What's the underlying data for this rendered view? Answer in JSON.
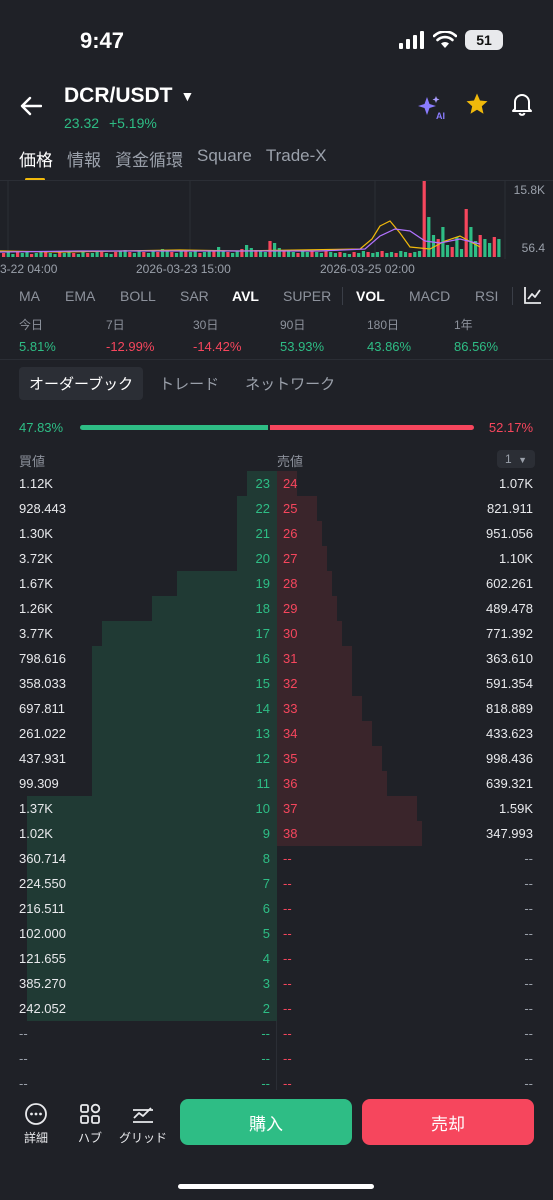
{
  "status": {
    "time": "9:47",
    "battery": "51"
  },
  "header": {
    "pair": "DCR/USDT",
    "price": "23.32",
    "change": "+5.19%",
    "ai_label": "AI"
  },
  "tabs": [
    "価格",
    "情報",
    "資金循環",
    "Square",
    "Trade-X"
  ],
  "chart": {
    "y_top": "15.8K",
    "y_bottom": "56.4",
    "x_labels": [
      "3-22 04:00",
      "2026-03-23 15:00",
      "2026-03-25 02:00"
    ]
  },
  "indicators": [
    "MA",
    "EMA",
    "BOLL",
    "SAR",
    "AVL",
    "SUPER",
    "VOL",
    "MACD",
    "RSI"
  ],
  "performance": [
    {
      "label": "今日",
      "value": "5.81%",
      "dir": "up"
    },
    {
      "label": "7日",
      "value": "-12.99%",
      "dir": "down"
    },
    {
      "label": "30日",
      "value": "-14.42%",
      "dir": "down"
    },
    {
      "label": "90日",
      "value": "53.93%",
      "dir": "up"
    },
    {
      "label": "180日",
      "value": "43.86%",
      "dir": "up"
    },
    {
      "label": "1年",
      "value": "86.56%",
      "dir": "up"
    }
  ],
  "segments": [
    "オーダーブック",
    "トレード",
    "ネットワーク"
  ],
  "ratio": {
    "buy": "47.83%",
    "sell": "52.17%",
    "buy_fraction": 0.4783
  },
  "orderbook": {
    "bid_header": "買値",
    "ask_header": "売値",
    "precision": "1",
    "rows": [
      {
        "bid": "1.12K",
        "bid_lvl": "23",
        "ask_lvl": "24",
        "ask": "1.07K"
      },
      {
        "bid": "928.443",
        "bid_lvl": "22",
        "ask_lvl": "25",
        "ask": "821.911"
      },
      {
        "bid": "1.30K",
        "bid_lvl": "21",
        "ask_lvl": "26",
        "ask": "951.056"
      },
      {
        "bid": "3.72K",
        "bid_lvl": "20",
        "ask_lvl": "27",
        "ask": "1.10K"
      },
      {
        "bid": "1.67K",
        "bid_lvl": "19",
        "ask_lvl": "28",
        "ask": "602.261"
      },
      {
        "bid": "1.26K",
        "bid_lvl": "18",
        "ask_lvl": "29",
        "ask": "489.478"
      },
      {
        "bid": "3.77K",
        "bid_lvl": "17",
        "ask_lvl": "30",
        "ask": "771.392"
      },
      {
        "bid": "798.616",
        "bid_lvl": "16",
        "ask_lvl": "31",
        "ask": "363.610"
      },
      {
        "bid": "358.033",
        "bid_lvl": "15",
        "ask_lvl": "32",
        "ask": "591.354"
      },
      {
        "bid": "697.811",
        "bid_lvl": "14",
        "ask_lvl": "33",
        "ask": "818.889"
      },
      {
        "bid": "261.022",
        "bid_lvl": "13",
        "ask_lvl": "34",
        "ask": "433.623"
      },
      {
        "bid": "437.931",
        "bid_lvl": "12",
        "ask_lvl": "35",
        "ask": "998.436"
      },
      {
        "bid": "99.309",
        "bid_lvl": "11",
        "ask_lvl": "36",
        "ask": "639.321"
      },
      {
        "bid": "1.37K",
        "bid_lvl": "10",
        "ask_lvl": "37",
        "ask": "1.59K"
      },
      {
        "bid": "1.02K",
        "bid_lvl": "9",
        "ask_lvl": "38",
        "ask": "347.993"
      },
      {
        "bid": "360.714",
        "bid_lvl": "8",
        "ask_lvl": "--",
        "ask": "--"
      },
      {
        "bid": "224.550",
        "bid_lvl": "7",
        "ask_lvl": "--",
        "ask": "--"
      },
      {
        "bid": "216.511",
        "bid_lvl": "6",
        "ask_lvl": "--",
        "ask": "--"
      },
      {
        "bid": "102.000",
        "bid_lvl": "5",
        "ask_lvl": "--",
        "ask": "--"
      },
      {
        "bid": "121.655",
        "bid_lvl": "4",
        "ask_lvl": "--",
        "ask": "--"
      },
      {
        "bid": "385.270",
        "bid_lvl": "3",
        "ask_lvl": "--",
        "ask": "--"
      },
      {
        "bid": "242.052",
        "bid_lvl": "2",
        "ask_lvl": "--",
        "ask": "--"
      },
      {
        "bid": "--",
        "bid_lvl": "--",
        "ask_lvl": "--",
        "ask": "--"
      },
      {
        "bid": "--",
        "bid_lvl": "--",
        "ask_lvl": "--",
        "ask": "--"
      },
      {
        "bid": "--",
        "bid_lvl": "--",
        "ask_lvl": "--",
        "ask": "--"
      }
    ]
  },
  "bottom_nav": [
    {
      "label": "詳細",
      "icon": "more-dots-icon"
    },
    {
      "label": "ハブ",
      "icon": "hub-grid-icon"
    },
    {
      "label": "グリッド",
      "icon": "grid-chart-icon"
    }
  ],
  "actions": {
    "buy": "購入",
    "sell": "売却"
  },
  "colors": {
    "up": "#2ebd85",
    "down": "#f6465d",
    "accent": "#f0b90b",
    "background": "#1f2127"
  }
}
